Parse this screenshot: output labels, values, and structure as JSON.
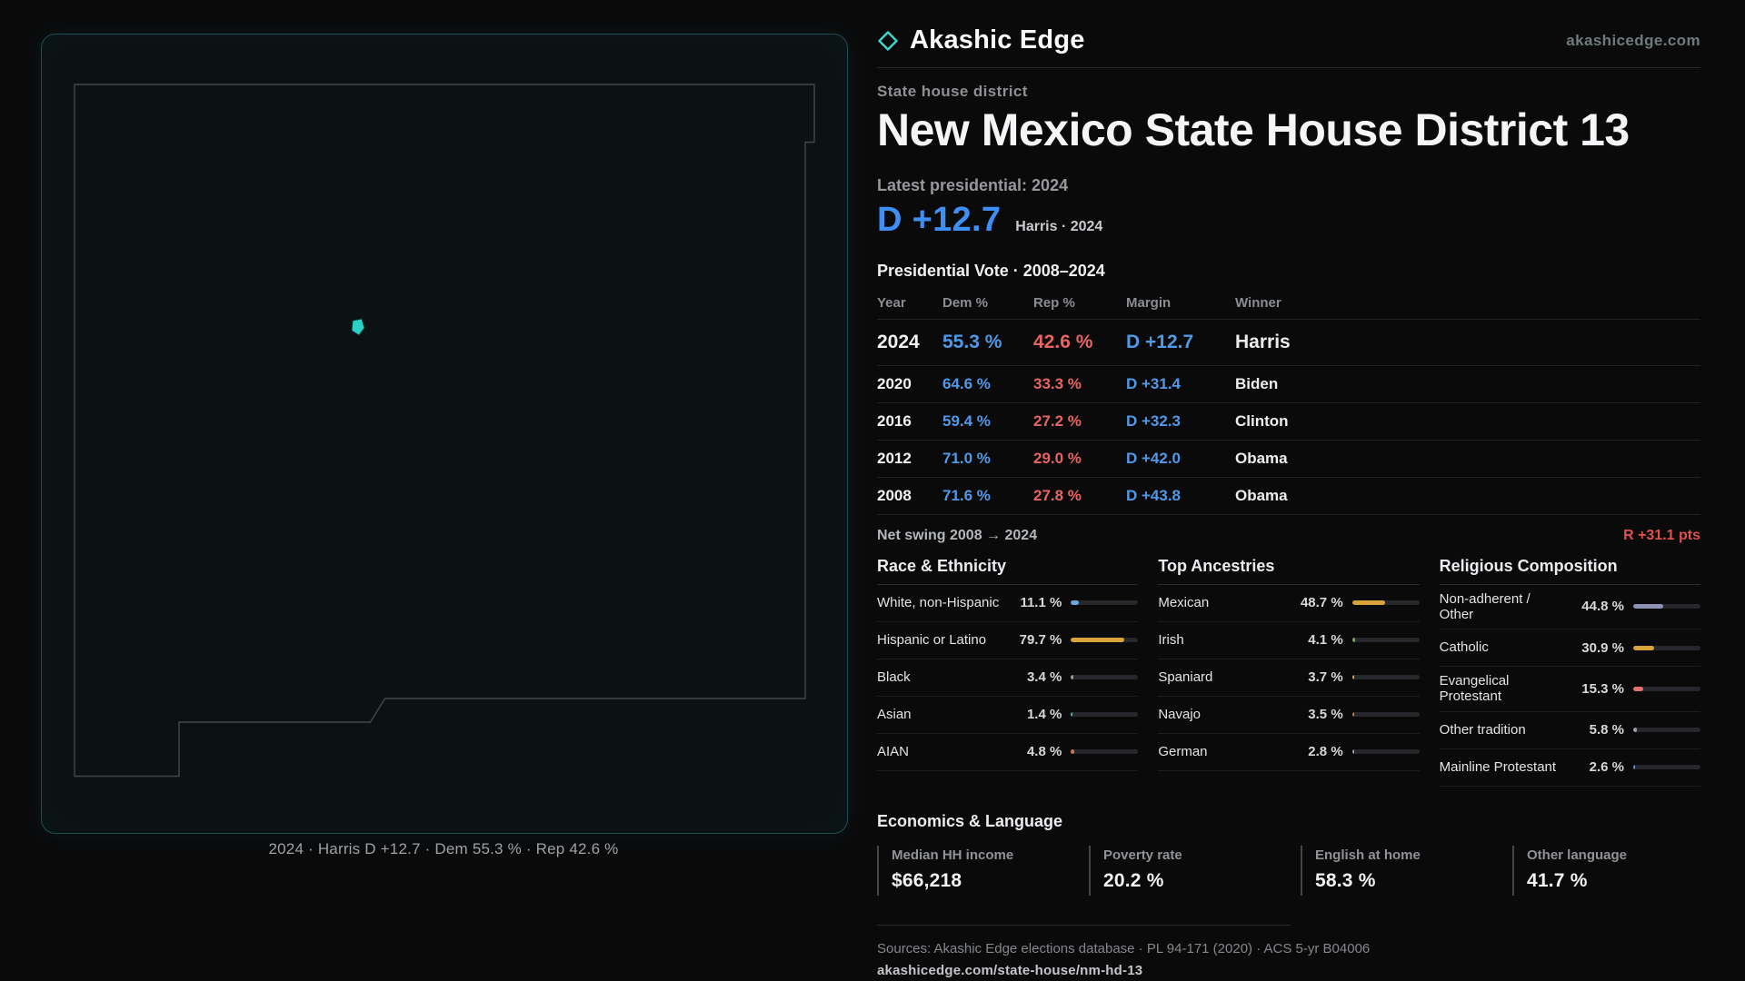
{
  "map": {
    "caption": "2024 · Harris D +12.7 · Dem 55.3 % · Rep 42.6 %",
    "marker_color": "#2bd1c6"
  },
  "header": {
    "brand": "Akashic Edge",
    "site": "akashicedge.com",
    "kicker": "State house district",
    "title": "New Mexico State House District 13"
  },
  "latest": {
    "label": "Latest presidential: 2024",
    "margin": "D +12.7",
    "note": "Harris · 2024"
  },
  "table": {
    "title": "Presidential Vote · 2008–2024",
    "columns": [
      "Year",
      "Dem %",
      "Rep %",
      "Margin",
      "Winner"
    ],
    "rows": [
      {
        "year": "2024",
        "dem": "55.3 %",
        "rep": "42.6 %",
        "margin": "D +12.7",
        "winner": "Harris"
      },
      {
        "year": "2020",
        "dem": "64.6 %",
        "rep": "33.3 %",
        "margin": "D +31.4",
        "winner": "Biden"
      },
      {
        "year": "2016",
        "dem": "59.4 %",
        "rep": "27.2 %",
        "margin": "D +32.3",
        "winner": "Clinton"
      },
      {
        "year": "2012",
        "dem": "71.0 %",
        "rep": "29.0 %",
        "margin": "D +42.0",
        "winner": "Obama"
      },
      {
        "year": "2008",
        "dem": "71.6 %",
        "rep": "27.8 %",
        "margin": "D +43.8",
        "winner": "Obama"
      }
    ],
    "net_swing_label": "Net swing 2008 → 2024",
    "net_swing_value": "R +31.1 pts"
  },
  "demographics": [
    {
      "title": "Race & Ethnicity",
      "rows": [
        {
          "label": "White, non-Hispanic",
          "value": "11.1 %",
          "pct": 11.1,
          "color": "#6fa3dc"
        },
        {
          "label": "Hispanic or Latino",
          "value": "79.7 %",
          "pct": 79.7,
          "color": "#d9a33c"
        },
        {
          "label": "Black",
          "value": "3.4 %",
          "pct": 3.4,
          "color": "#9aa0a6"
        },
        {
          "label": "Asian",
          "value": "1.4 %",
          "pct": 1.4,
          "color": "#49b8a8"
        },
        {
          "label": "AIAN",
          "value": "4.8 %",
          "pct": 4.8,
          "color": "#d0784a"
        }
      ]
    },
    {
      "title": "Top Ancestries",
      "rows": [
        {
          "label": "Mexican",
          "value": "48.7 %",
          "pct": 48.7,
          "color": "#d9a33c"
        },
        {
          "label": "Irish",
          "value": "4.1 %",
          "pct": 4.1,
          "color": "#7c9e6d"
        },
        {
          "label": "Spaniard",
          "value": "3.7 %",
          "pct": 3.7,
          "color": "#c8b04a"
        },
        {
          "label": "Navajo",
          "value": "3.5 %",
          "pct": 3.5,
          "color": "#d0784a"
        },
        {
          "label": "German",
          "value": "2.8 %",
          "pct": 2.8,
          "color": "#9aa0a6"
        }
      ]
    },
    {
      "title": "Religious Composition",
      "rows": [
        {
          "label": "Non-adherent / Other",
          "value": "44.8 %",
          "pct": 44.8,
          "color": "#8d91b4"
        },
        {
          "label": "Catholic",
          "value": "30.9 %",
          "pct": 30.9,
          "color": "#d9a33c"
        },
        {
          "label": "Evangelical Protestant",
          "value": "15.3 %",
          "pct": 15.3,
          "color": "#e57070"
        },
        {
          "label": "Other tradition",
          "value": "5.8 %",
          "pct": 5.8,
          "color": "#9aa0a6"
        },
        {
          "label": "Mainline Protestant",
          "value": "2.6 %",
          "pct": 2.6,
          "color": "#5f93d8"
        }
      ]
    }
  ],
  "economics": {
    "title": "Economics & Language",
    "stats": [
      {
        "label": "Median HH income",
        "value": "$66,218"
      },
      {
        "label": "Poverty rate",
        "value": "20.2 %"
      },
      {
        "label": "English at home",
        "value": "58.3 %"
      },
      {
        "label": "Other language",
        "value": "41.7 %"
      }
    ]
  },
  "footer": {
    "sources": "Sources: Akashic Edge elections database · PL 94-171 (2020) · ACS 5-yr B04006",
    "permalink": "akashicedge.com/state-house/nm-hd-13"
  }
}
